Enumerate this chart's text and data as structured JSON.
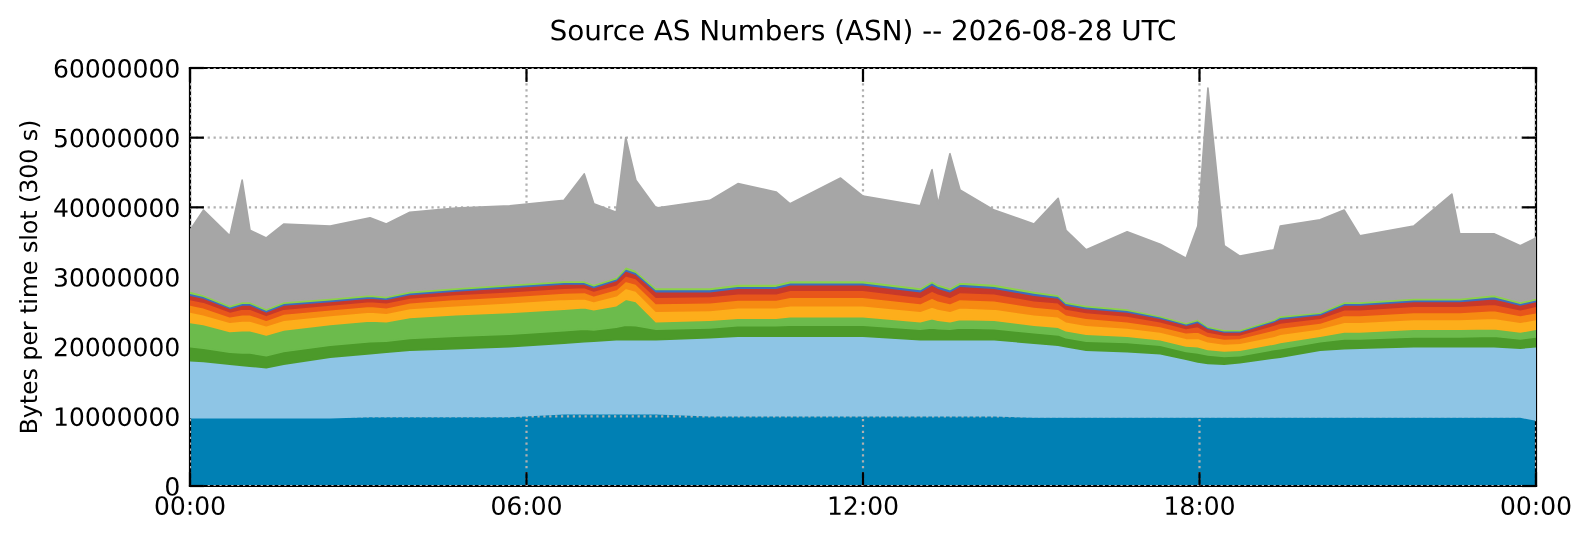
{
  "chart_data": {
    "type": "area",
    "stacked": true,
    "title": "Source AS Numbers (ASN) -- 2026-08-28 UTC",
    "ylabel": "Bytes per time slot (300 s)",
    "x": [
      0,
      0.24,
      0.71,
      0.93,
      1.07,
      1.36,
      1.67,
      2.5,
      3.21,
      3.5,
      3.92,
      4.74,
      5.7,
      6.67,
      7.03,
      7.2,
      7.6,
      7.77,
      7.95,
      8.31,
      9.27,
      9.77,
      10.45,
      10.7,
      11.6,
      12.0,
      13.02,
      13.23,
      13.34,
      13.55,
      13.73,
      14.34,
      15.05,
      15.48,
      15.62,
      15.98,
      16.71,
      17.3,
      17.76,
      17.97,
      18.15,
      18.44,
      18.72,
      19.33,
      19.44,
      20.15,
      20.58,
      20.86,
      21.82,
      22.5,
      22.64,
      23.25,
      23.72,
      24
    ],
    "xlim": [
      0,
      24
    ],
    "xticks": [
      {
        "value": 0,
        "label": "00:00"
      },
      {
        "value": 6,
        "label": "06:00"
      },
      {
        "value": 12,
        "label": "12:00"
      },
      {
        "value": 18,
        "label": "18:00"
      },
      {
        "value": 24,
        "label": "00:00"
      }
    ],
    "ylim": [
      0,
      60000000
    ],
    "yticks": [
      0,
      10000000,
      20000000,
      30000000,
      40000000,
      50000000,
      60000000
    ],
    "grid": true,
    "legend": false,
    "series": [
      {
        "color": "#0080b4",
        "values": [
          9800000.0,
          9800000.0,
          9800000.0,
          9800000.0,
          9800000.0,
          9800000.0,
          9800000.0,
          9800000.0,
          10000000.0,
          10000000.0,
          10000000.0,
          10000000.0,
          10000000.0,
          10400000.0,
          10400000.0,
          10400000.0,
          10400000.0,
          10400000.0,
          10400000.0,
          10400000.0,
          10100000.0,
          10100000.0,
          10100000.0,
          10100000.0,
          10100000.0,
          10100000.0,
          10100000.0,
          10100000.0,
          10100000.0,
          10100000.0,
          10100000.0,
          10100000.0,
          9900000.0,
          9900000.0,
          9900000.0,
          9900000.0,
          9900000.0,
          9900000.0,
          9900000.0,
          9900000.0,
          9900000.0,
          9900000.0,
          9900000.0,
          9900000.0,
          9900000.0,
          9900000.0,
          9900000.0,
          9900000.0,
          9900000.0,
          9900000.0,
          9900000.0,
          9900000.0,
          9900000.0,
          9500000.0
        ]
      },
      {
        "color": "#8ec5e5",
        "values": [
          8200000.0,
          8100000.0,
          7700000.0,
          7500000.0,
          7400000.0,
          7200000.0,
          7700000.0,
          8700000.0,
          9000000.0,
          9200000.0,
          9500000.0,
          9700000.0,
          10000000.0,
          10100000.0,
          10300000.0,
          10400000.0,
          10600000.0,
          10600000.0,
          10600000.0,
          10600000.0,
          11200000.0,
          11400000.0,
          11400000.0,
          11400000.0,
          11400000.0,
          11400000.0,
          10900000.0,
          10900000.0,
          10900000.0,
          10900000.0,
          10900000.0,
          10900000.0,
          10600000.0,
          10300000.0,
          10100000.0,
          9600000.0,
          9400000.0,
          9100000.0,
          8300000.0,
          7900000.0,
          7700000.0,
          7600000.0,
          7800000.0,
          8500000.0,
          8600000.0,
          9600000.0,
          9800000.0,
          9900000.0,
          10100000.0,
          10100000.0,
          10100000.0,
          10100000.0,
          9900000.0,
          10500000.0
        ]
      },
      {
        "color": "#4c9a2a",
        "values": [
          2000000.0,
          1900000.0,
          1700000.0,
          1800000.0,
          1900000.0,
          1700000.0,
          1800000.0,
          1700000.0,
          1700000.0,
          1600000.0,
          1700000.0,
          1800000.0,
          1800000.0,
          1800000.0,
          1800000.0,
          1600000.0,
          1800000.0,
          2100000.0,
          2000000.0,
          1500000.0,
          1400000.0,
          1500000.0,
          1500000.0,
          1600000.0,
          1600000.0,
          1600000.0,
          1500000.0,
          1700000.0,
          1600000.0,
          1500000.0,
          1700000.0,
          1600000.0,
          1500000.0,
          1500000.0,
          1300000.0,
          1300000.0,
          1300000.0,
          1200000.0,
          1100000.0,
          1300000.0,
          1200000.0,
          1100000.0,
          1000000.0,
          1200000.0,
          1200000.0,
          1200000.0,
          1400000.0,
          1300000.0,
          1400000.0,
          1400000.0,
          1400000.0,
          1500000.0,
          1300000.0,
          1400000.0
        ]
      },
      {
        "color": "#6cbb4c",
        "values": [
          3500000.0,
          3400000.0,
          3000000.0,
          3200000.0,
          3200000.0,
          3000000.0,
          3100000.0,
          3000000.0,
          3000000.0,
          2800000.0,
          3000000.0,
          3100000.0,
          3100000.0,
          3100000.0,
          3100000.0,
          2900000.0,
          3100000.0,
          3700000.0,
          3500000.0,
          1100000.0,
          1100000.0,
          1100000.0,
          1100000.0,
          1200000.0,
          1200000.0,
          1200000.0,
          1100000.0,
          1300000.0,
          1200000.0,
          1100000.0,
          1200000.0,
          1200000.0,
          1100000.0,
          1100000.0,
          1000000.0,
          1000000.0,
          900000.0,
          800000.0,
          800000.0,
          900000.0,
          800000.0,
          800000.0,
          800000.0,
          800000.0,
          900000.0,
          800000.0,
          1000000.0,
          1000000.0,
          1100000.0,
          1100000.0,
          1100000.0,
          1100000.0,
          1000000.0,
          1100000.0
        ]
      },
      {
        "color": "#fdae1b",
        "values": [
          1500000.0,
          1400000.0,
          1300000.0,
          1400000.0,
          1400000.0,
          1300000.0,
          1400000.0,
          1300000.0,
          1300000.0,
          1200000.0,
          1300000.0,
          1300000.0,
          1400000.0,
          1400000.0,
          1300000.0,
          1200000.0,
          1400000.0,
          1600000.0,
          1500000.0,
          1500000.0,
          1400000.0,
          1500000.0,
          1500000.0,
          1600000.0,
          1600000.0,
          1600000.0,
          1500000.0,
          1700000.0,
          1600000.0,
          1500000.0,
          1700000.0,
          1600000.0,
          1500000.0,
          1500000.0,
          1300000.0,
          1300000.0,
          1200000.0,
          1100000.0,
          1100000.0,
          1200000.0,
          1100000.0,
          1000000.0,
          1000000.0,
          1100000.0,
          1200000.0,
          1100000.0,
          1400000.0,
          1400000.0,
          1400000.0,
          1400000.0,
          1400000.0,
          1500000.0,
          1400000.0,
          1400000.0
        ]
      },
      {
        "color": "#f68b12",
        "values": [
          1000000.0,
          1000000.0,
          800000.0,
          900000.0,
          900000.0,
          800000.0,
          900000.0,
          800000.0,
          800000.0,
          800000.0,
          800000.0,
          900000.0,
          900000.0,
          900000.0,
          900000.0,
          800000.0,
          900000.0,
          1000000.0,
          1000000.0,
          1100000.0,
          1100000.0,
          1100000.0,
          1100000.0,
          1200000.0,
          1200000.0,
          1200000.0,
          1100000.0,
          1300000.0,
          1200000.0,
          1100000.0,
          1200000.0,
          1200000.0,
          1100000.0,
          1100000.0,
          1000000.0,
          1000000.0,
          900000.0,
          800000.0,
          800000.0,
          900000.0,
          800000.0,
          700000.0,
          700000.0,
          900000.0,
          900000.0,
          800000.0,
          1000000.0,
          1000000.0,
          1000000.0,
          1000000.0,
          1000000.0,
          1100000.0,
          1000000.0,
          1000000.0
        ]
      },
      {
        "color": "#e8561a",
        "values": [
          800000.0,
          800000.0,
          700000.0,
          800000.0,
          800000.0,
          700000.0,
          700000.0,
          700000.0,
          700000.0,
          700000.0,
          700000.0,
          700000.0,
          700000.0,
          700000.0,
          700000.0,
          700000.0,
          700000.0,
          800000.0,
          800000.0,
          900000.0,
          900000.0,
          900000.0,
          900000.0,
          1000000.0,
          1000000.0,
          1000000.0,
          900000.0,
          1000000.0,
          1000000.0,
          900000.0,
          1000000.0,
          1000000.0,
          900000.0,
          900000.0,
          800000.0,
          800000.0,
          800000.0,
          700000.0,
          600000.0,
          800000.0,
          600000.0,
          600000.0,
          500000.0,
          700000.0,
          700000.0,
          700000.0,
          800000.0,
          800000.0,
          900000.0,
          900000.0,
          900000.0,
          900000.0,
          800000.0,
          900000.0
        ]
      },
      {
        "color": "#c8392a",
        "values": [
          600000.0,
          600000.0,
          500000.0,
          600000.0,
          600000.0,
          500000.0,
          600000.0,
          500000.0,
          500000.0,
          500000.0,
          500000.0,
          500000.0,
          600000.0,
          600000.0,
          500000.0,
          500000.0,
          600000.0,
          700000.0,
          600000.0,
          800000.0,
          700000.0,
          800000.0,
          800000.0,
          800000.0,
          800000.0,
          800000.0,
          800000.0,
          900000.0,
          800000.0,
          800000.0,
          900000.0,
          800000.0,
          800000.0,
          700000.0,
          600000.0,
          600000.0,
          600000.0,
          500000.0,
          500000.0,
          600000.0,
          500000.0,
          400000.0,
          400000.0,
          500000.0,
          600000.0,
          500000.0,
          700000.0,
          700000.0,
          700000.0,
          700000.0,
          700000.0,
          800000.0,
          700000.0,
          700000.0
        ]
      },
      {
        "color": "#3c6ebf",
        "values": [
          300000.0,
          250000.0,
          250000.0,
          250000.0,
          250000.0,
          250000.0,
          250000.0,
          250000.0,
          250000.0,
          250000.0,
          250000.0,
          250000.0,
          250000.0,
          250000.0,
          250000.0,
          250000.0,
          250000.0,
          300000.0,
          300000.0,
          300000.0,
          300000.0,
          300000.0,
          300000.0,
          300000.0,
          300000.0,
          300000.0,
          300000.0,
          300000.0,
          300000.0,
          300000.0,
          300000.0,
          300000.0,
          300000.0,
          250000.0,
          250000.0,
          250000.0,
          250000.0,
          200000.0,
          200000.0,
          250000.0,
          200000.0,
          200000.0,
          200000.0,
          200000.0,
          250000.0,
          200000.0,
          250000.0,
          250000.0,
          250000.0,
          250000.0,
          250000.0,
          300000.0,
          250000.0,
          250000.0
        ]
      },
      {
        "color": "#8cd24a",
        "values": [
          300000.0,
          250000.0,
          250000.0,
          250000.0,
          250000.0,
          250000.0,
          250000.0,
          250000.0,
          250000.0,
          250000.0,
          250000.0,
          250000.0,
          250000.0,
          250000.0,
          250000.0,
          250000.0,
          250000.0,
          300000.0,
          300000.0,
          300000.0,
          300000.0,
          300000.0,
          300000.0,
          300000.0,
          300000.0,
          300000.0,
          300000.0,
          300000.0,
          300000.0,
          300000.0,
          300000.0,
          300000.0,
          300000.0,
          250000.0,
          250000.0,
          250000.0,
          250000.0,
          200000.0,
          200000.0,
          250000.0,
          200000.0,
          200000.0,
          200000.0,
          200000.0,
          250000.0,
          200000.0,
          250000.0,
          250000.0,
          250000.0,
          250000.0,
          250000.0,
          300000.0,
          250000.0,
          250000.0
        ]
      },
      {
        "color": "#a6a6a6",
        "values": [
          8700000.0,
          12100000.0,
          9900000.0,
          17400000.0,
          10200000.0,
          10100000.0,
          11100000.0,
          10300000.0,
          11000000.0,
          10300000.0,
          11300000.0,
          11400000.0,
          11200000.0,
          11500000.0,
          15300000.0,
          11500000.0,
          9300000.0,
          18500000.0,
          12900000.0,
          11400000.0,
          12500000.0,
          14400000.0,
          13200000.0,
          11000000.0,
          14700000.0,
          12100000.0,
          11700000.0,
          15900000.0,
          11500000.0,
          19200000.0,
          13200000.0,
          10600000.0,
          9600000.0,
          13800000.0,
          10200000.0,
          7900000.0,
          11000000.0,
          10200000.0,
          9200000.0,
          13300000.0,
          34100000.0,
          12000000.0,
          10500000.0,
          9900000.0,
          12800000.0,
          13200000.0,
          13100000.0,
          9400000.0,
          10300000.0,
          14900000.0,
          9200000.0,
          8700000.0,
          8000000.0,
          8600000.0
        ]
      }
    ]
  }
}
